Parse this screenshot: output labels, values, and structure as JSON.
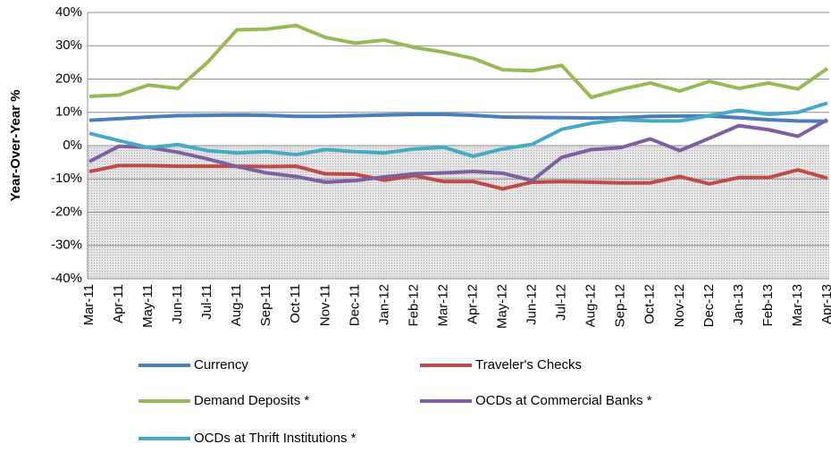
{
  "chart_data": {
    "type": "line",
    "y_label": "Year-Over-Year %",
    "categories": [
      "Mar-11",
      "Apr-11",
      "May-11",
      "Jun-11",
      "Jul-11",
      "Aug-11",
      "Sep-11",
      "Oct-11",
      "Nov-11",
      "Dec-11",
      "Jan-12",
      "Feb-12",
      "Mar-12",
      "Apr-12",
      "May-12",
      "Jun-12",
      "Jul-12",
      "Aug-12",
      "Sep-12",
      "Oct-12",
      "Nov-12",
      "Dec-12",
      "Jan-13",
      "Feb-13",
      "Mar-13",
      "Apr-13"
    ],
    "series": [
      {
        "name": "Currency",
        "color": "#4a7ebb",
        "values": [
          7.6,
          8.1,
          8.6,
          9.0,
          9.1,
          9.2,
          9.1,
          8.8,
          8.8,
          9.0,
          9.2,
          9.4,
          9.4,
          9.1,
          8.6,
          8.5,
          8.4,
          8.3,
          8.4,
          8.8,
          8.9,
          8.9,
          8.4,
          7.8,
          7.4,
          7.3
        ]
      },
      {
        "name": "Traveler's Checks",
        "color": "#be4b48",
        "values": [
          -7.8,
          -6,
          -6,
          -6.2,
          -6.2,
          -6.2,
          -6.3,
          -6.2,
          -8.5,
          -8.6,
          -10.4,
          -9,
          -10.8,
          -10.8,
          -13,
          -11,
          -10.8,
          -11,
          -11.2,
          -11.2,
          -9.3,
          -11.5,
          -9.6,
          -9.6,
          -7.3,
          -9.8
        ]
      },
      {
        "name": "Demand Deposits *",
        "color": "#98b954",
        "values": [
          14.8,
          15.2,
          18.2,
          17.2,
          25,
          34.8,
          35,
          36.1,
          32.5,
          30.8,
          31.7,
          29.5,
          28.1,
          26.2,
          22.8,
          22.5,
          24.1,
          14.5,
          16.9,
          18.8,
          16.4,
          19.3,
          17.2,
          18.8,
          17.0,
          23.2
        ]
      },
      {
        "name": "OCDs at Commercial Banks *",
        "color": "#7d60a0",
        "values": [
          -4.8,
          -0.2,
          -0.5,
          -2,
          -4,
          -6.3,
          -8.2,
          -9.3,
          -11,
          -10.5,
          -9.4,
          -8.5,
          -8.2,
          -7.8,
          -8.3,
          -10.5,
          -3.5,
          -1.2,
          -0.6,
          2.0,
          -1.5,
          2.2,
          6.0,
          4.8,
          2.8,
          7.8
        ]
      },
      {
        "name": "OCDs at Thrift Institutions *",
        "color": "#46aac5",
        "values": [
          3.7,
          1.5,
          -0.6,
          0.3,
          -1.5,
          -2.2,
          -1.8,
          -2.7,
          -1.2,
          -1.8,
          -2.2,
          -1,
          -0.5,
          -3.2,
          -1,
          0.4,
          4.9,
          6.7,
          7.8,
          7.4,
          7.4,
          9,
          10.6,
          9.4,
          10,
          12.8
        ]
      }
    ],
    "ylim": [
      -40,
      40
    ],
    "yticks": [
      {
        "value": -40,
        "label": "-40%"
      },
      {
        "value": -30,
        "label": "-30%"
      },
      {
        "value": -20,
        "label": "-20%"
      },
      {
        "value": -10,
        "label": "-10%"
      },
      {
        "value": 0,
        "label": "0%"
      },
      {
        "value": 10,
        "label": "10%"
      },
      {
        "value": 20,
        "label": "20%"
      },
      {
        "value": 30,
        "label": "30%"
      },
      {
        "value": 40,
        "label": "40%"
      }
    ],
    "grid": true,
    "legend": "bottom"
  }
}
